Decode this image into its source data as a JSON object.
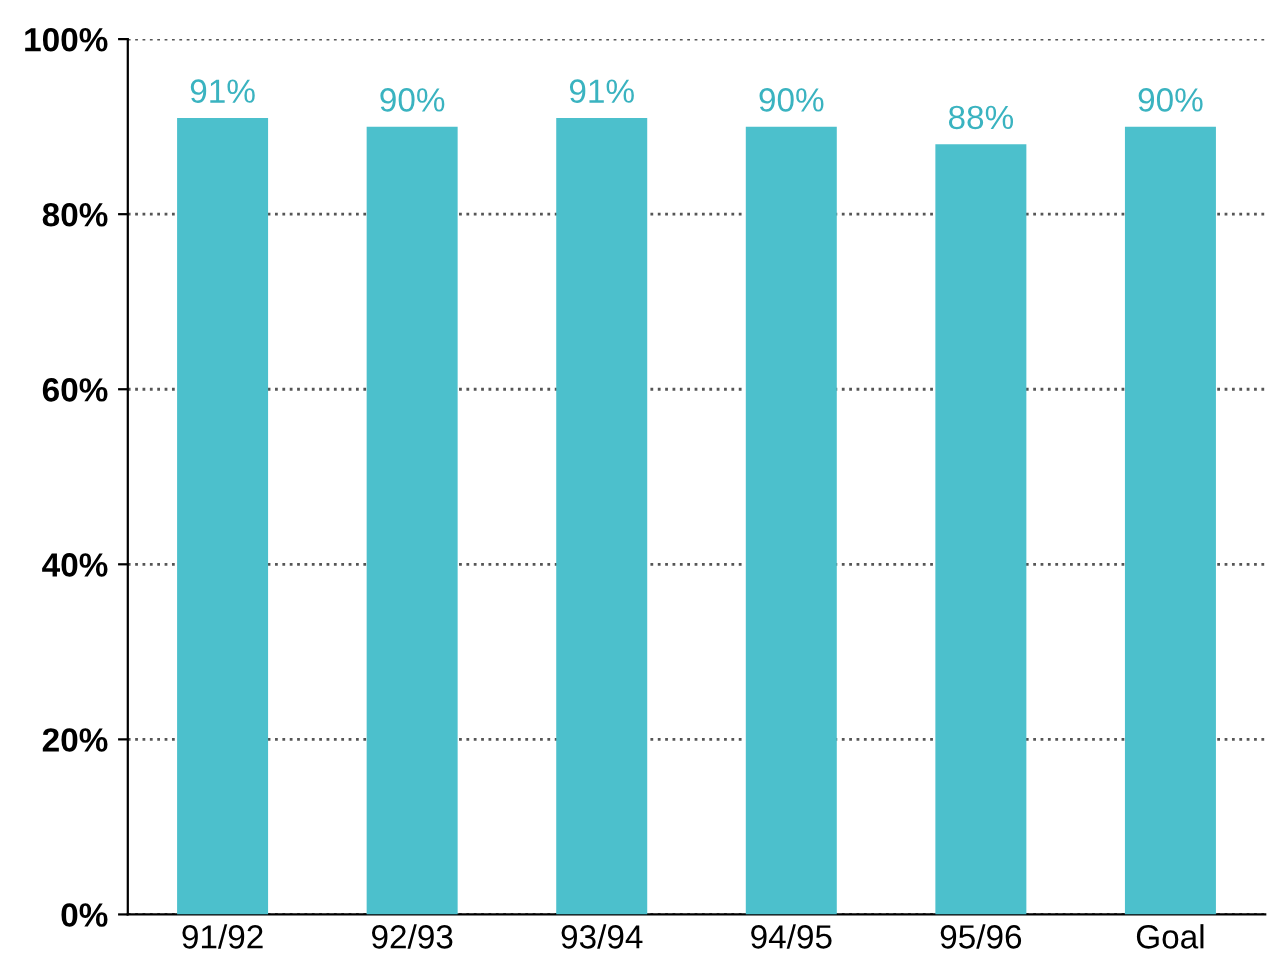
{
  "chart_data": {
    "type": "bar",
    "categories": [
      "91/92",
      "92/93",
      "93/94",
      "94/95",
      "95/96",
      "Goal"
    ],
    "values": [
      91,
      90,
      91,
      90,
      88,
      90
    ],
    "value_labels": [
      "91%",
      "90%",
      "91%",
      "90%",
      "88%",
      "90%"
    ],
    "color": "#4cc0cc",
    "ylim": [
      0,
      100
    ],
    "yticks": [
      {
        "value": 0,
        "label": "0%"
      },
      {
        "value": 20,
        "label": "20%"
      },
      {
        "value": 40,
        "label": "40%"
      },
      {
        "value": 60,
        "label": "60%"
      },
      {
        "value": 80,
        "label": "80%"
      },
      {
        "value": 100,
        "label": "100%"
      }
    ],
    "grid": "y",
    "line_style": "dotted"
  }
}
